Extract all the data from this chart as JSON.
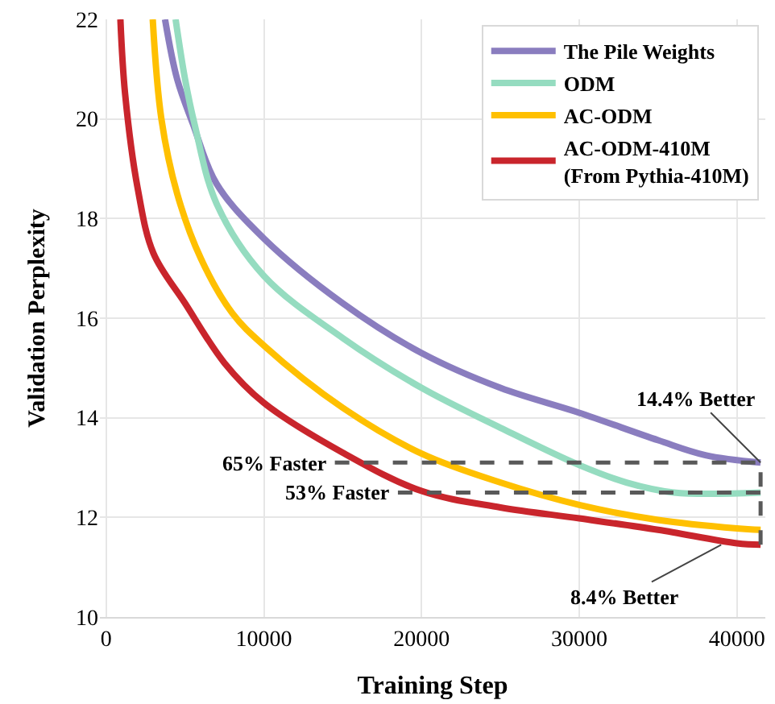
{
  "chart_data": {
    "type": "line",
    "xlabel": "Training Step",
    "ylabel": "Validation Perplexity",
    "xlim": [
      -400,
      41800
    ],
    "ylim": [
      10,
      22
    ],
    "xticks": [
      0,
      10000,
      20000,
      30000,
      40000
    ],
    "yticks": [
      10,
      12,
      14,
      16,
      18,
      20,
      22
    ],
    "grid": true,
    "legend": "top right",
    "line_style": "solid",
    "marker": "none",
    "series": [
      {
        "name": "The Pile Weights",
        "color": "#8a7dbf",
        "x": [
          3730,
          4500,
          5500,
          7000,
          10000,
          15000,
          20000,
          25000,
          30000,
          35000,
          38000,
          41500
        ],
        "values": [
          22,
          20.8,
          19.9,
          18.7,
          17.6,
          16.3,
          15.3,
          14.6,
          14.1,
          13.55,
          13.25,
          13.1
        ]
      },
      {
        "name": "ODM",
        "color": "#95dcc0",
        "x": [
          4400,
          5000,
          5600,
          7000,
          10000,
          15000,
          20000,
          25000,
          30000,
          33000,
          36000,
          41500
        ],
        "values": [
          22,
          20.8,
          19.9,
          18.3,
          16.85,
          15.6,
          14.6,
          13.8,
          13.05,
          12.7,
          12.5,
          12.5
        ]
      },
      {
        "name": "AC-ODM",
        "color": "#ffc000",
        "x": [
          2950,
          3500,
          4500,
          6000,
          8000,
          10000,
          15000,
          20000,
          25000,
          30000,
          35000,
          40000,
          41500
        ],
        "values": [
          22,
          20,
          18.5,
          17.2,
          16.1,
          15.45,
          14.2,
          13.28,
          12.7,
          12.25,
          11.95,
          11.78,
          11.75
        ]
      },
      {
        "name": "AC-ODM-410M\n(From Pythia-410M)",
        "color": "#c9252c",
        "x": [
          900,
          1200,
          2000,
          3000,
          5000,
          7500,
          10000,
          15000,
          20000,
          25000,
          30000,
          35000,
          40000,
          41500
        ],
        "values": [
          22,
          20.5,
          18.6,
          17.3,
          16.3,
          15.1,
          14.3,
          13.3,
          12.53,
          12.2,
          11.98,
          11.75,
          11.48,
          11.45
        ]
      },
      {
        "color": "#595959",
        "line_style": "dashed",
        "x": [
          14500,
          41500
        ],
        "values": [
          13.1,
          13.1
        ]
      },
      {
        "color": "#595959",
        "line_style": "dashed",
        "x": [
          18500,
          41500
        ],
        "values": [
          12.5,
          12.5
        ]
      },
      {
        "color": "#595959",
        "line_style": "dashed",
        "x": [
          41500,
          41500
        ],
        "values": [
          11.45,
          13.1
        ]
      }
    ],
    "annotations": [
      {
        "text": "65% Faster",
        "x": 14500,
        "y": 13.1
      },
      {
        "text": "53% Faster",
        "x": 18500,
        "y": 12.5
      },
      {
        "text": "14.4% Better",
        "x": 41500,
        "y": 13.1
      },
      {
        "text": "8.4% Better",
        "x": 39000,
        "y": 11.45
      }
    ]
  }
}
